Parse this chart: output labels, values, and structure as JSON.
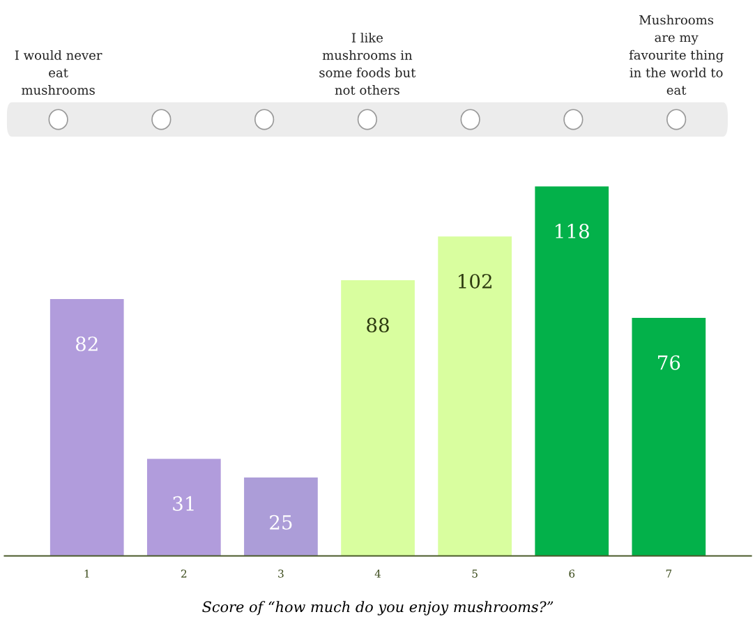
{
  "chart_data": {
    "type": "bar",
    "xlabel": "Score of “how much do you enjoy mushrooms?”",
    "categories": [
      "1",
      "2",
      "3",
      "4",
      "5",
      "6",
      "7"
    ],
    "values": [
      82,
      31,
      25,
      88,
      102,
      118,
      76
    ],
    "colors": [
      "#b19cdc",
      "#b19cdc",
      "#ac9dd8",
      "#d9fe9f",
      "#d9fe9f",
      "#03b14a",
      "#03b14a"
    ],
    "data_labels": true,
    "annotations": [
      "I would never\neat\nmushrooms",
      "I like\nmushrooms in\nsome foods but\nnot others",
      "Mushrooms\nare my\nfavourite thing\nin the world to\neat"
    ],
    "grid": false,
    "legend": false
  }
}
